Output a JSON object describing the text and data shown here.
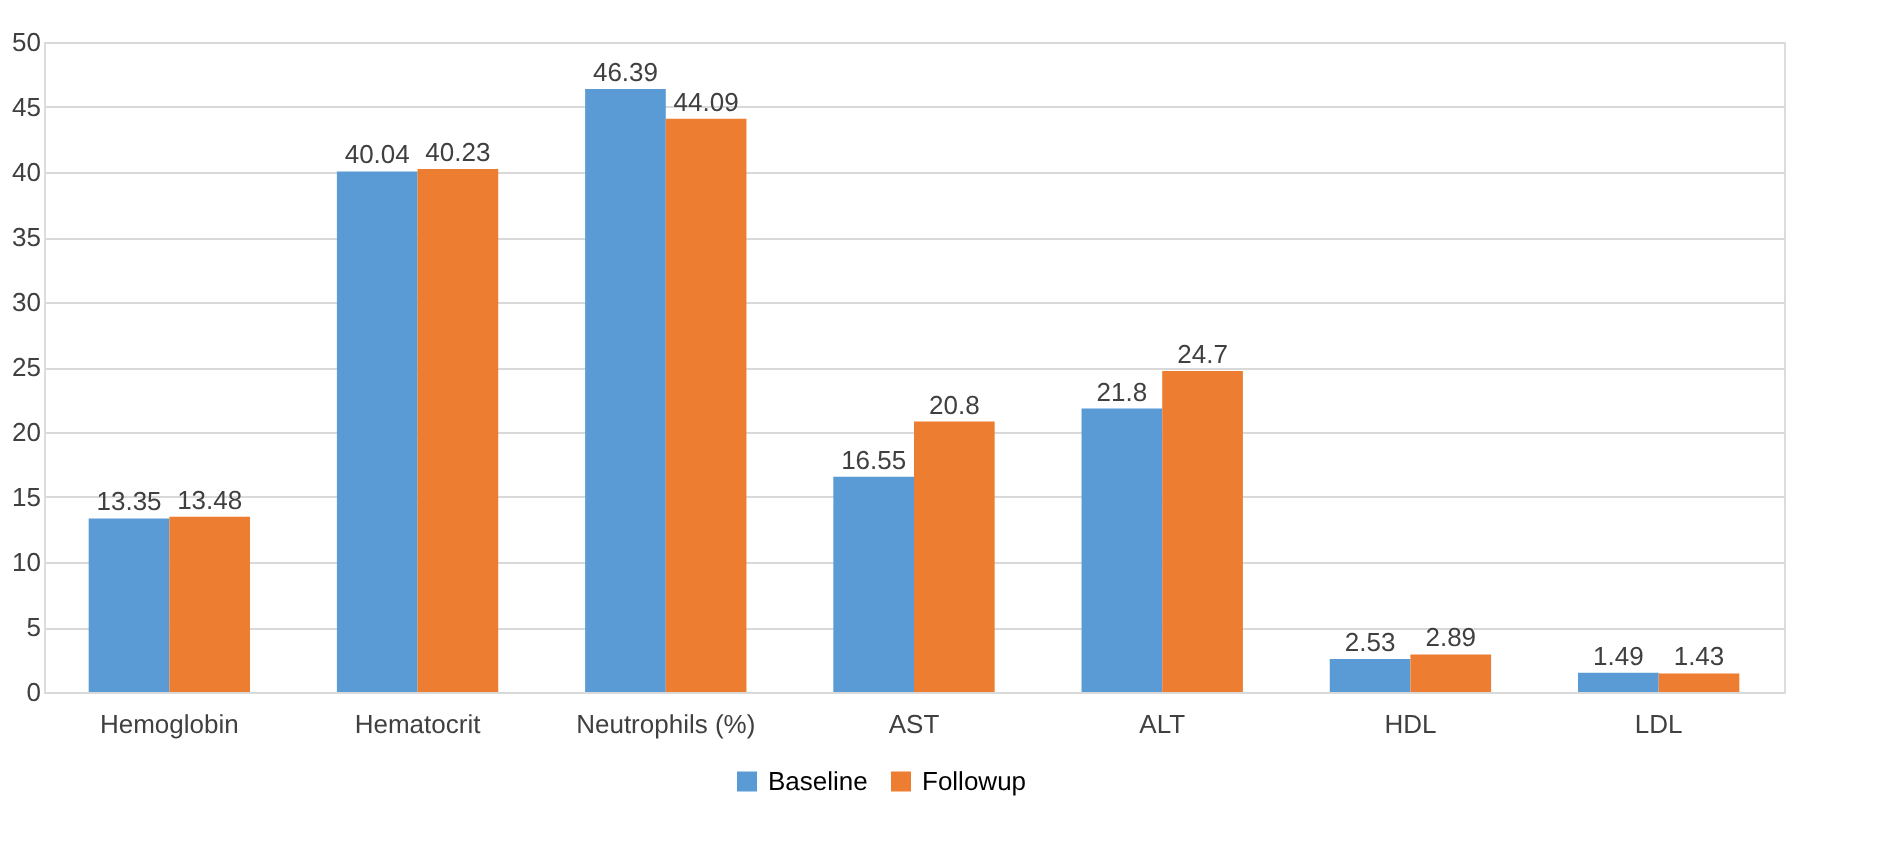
{
  "chart_data": {
    "type": "bar",
    "categories": [
      "Hemoglobin",
      "Hematocrit",
      "Neutrophils (%)",
      "AST",
      "ALT",
      "HDL",
      "LDL"
    ],
    "series": [
      {
        "name": "Baseline",
        "color": "#5b9bd5",
        "values": [
          13.35,
          40.04,
          46.39,
          16.55,
          21.8,
          2.53,
          1.49
        ]
      },
      {
        "name": "Followup",
        "color": "#ed7d31",
        "values": [
          13.48,
          40.23,
          44.09,
          20.8,
          24.7,
          2.89,
          1.43
        ]
      }
    ],
    "ylim": [
      0,
      50
    ],
    "yticks": [
      0,
      5,
      10,
      15,
      20,
      25,
      30,
      35,
      40,
      45,
      50
    ],
    "grid": "y",
    "legend": "bottom",
    "data_labels": true
  }
}
